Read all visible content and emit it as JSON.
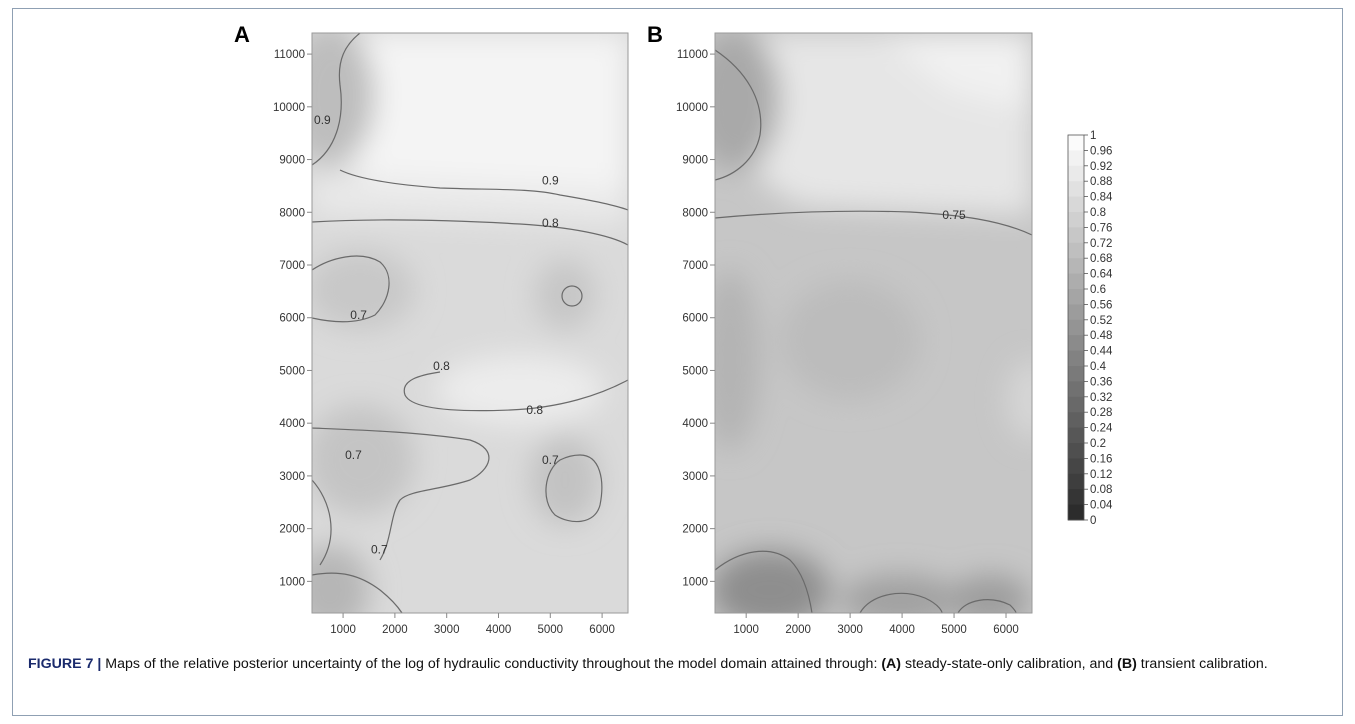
{
  "chart_data": [
    {
      "panel": "A",
      "type": "heatmap",
      "subtype": "filled-contour",
      "x_ticks": [
        1000,
        2000,
        3000,
        4000,
        5000,
        6000
      ],
      "y_ticks": [
        1000,
        2000,
        3000,
        4000,
        5000,
        6000,
        7000,
        8000,
        9000,
        10000,
        11000
      ],
      "xlim": [
        400,
        6500
      ],
      "ylim": [
        400,
        11400
      ],
      "contour_labels": [
        {
          "text": "0.9",
          "x": 600,
          "y": 9750
        },
        {
          "text": "0.9",
          "x": 5000,
          "y": 8600
        },
        {
          "text": "0.8",
          "x": 5000,
          "y": 7800
        },
        {
          "text": "0.7",
          "x": 1300,
          "y": 6050
        },
        {
          "text": "0.8",
          "x": 2900,
          "y": 5080
        },
        {
          "text": "0.8",
          "x": 4700,
          "y": 4250
        },
        {
          "text": "0.7",
          "x": 1200,
          "y": 3400
        },
        {
          "text": "0.7",
          "x": 5000,
          "y": 3300
        },
        {
          "text": "0.7",
          "x": 1700,
          "y": 1600
        }
      ],
      "value_range": [
        0.55,
        1.0
      ]
    },
    {
      "panel": "B",
      "type": "heatmap",
      "subtype": "filled-contour",
      "x_ticks": [
        1000,
        2000,
        3000,
        4000,
        5000,
        6000
      ],
      "y_ticks": [
        1000,
        2000,
        3000,
        4000,
        5000,
        6000,
        7000,
        8000,
        9000,
        10000,
        11000
      ],
      "xlim": [
        400,
        6500
      ],
      "ylim": [
        400,
        11400
      ],
      "contour_labels": [
        {
          "text": "0.75",
          "x": 5000,
          "y": 7950
        }
      ],
      "value_range": [
        0.5,
        1.0
      ]
    }
  ],
  "panel_labels": [
    "A",
    "B"
  ],
  "colorbar": {
    "labels": [
      "1",
      "0.96",
      "0.92",
      "0.88",
      "0.84",
      "0.8",
      "0.76",
      "0.72",
      "0.68",
      "0.64",
      "0.6",
      "0.56",
      "0.52",
      "0.48",
      "0.44",
      "0.4",
      "0.36",
      "0.32",
      "0.28",
      "0.24",
      "0.2",
      "0.16",
      "0.12",
      "0.08",
      "0.04",
      "0"
    ]
  },
  "caption": {
    "figure_label": "FIGURE 7 |",
    "text_before_a": " Maps of the relative posterior uncertainty of the log of hydraulic conductivity throughout the model domain attained through: ",
    "ref_a": "(A)",
    "text_a": " steady-state-only calibration, and ",
    "ref_b": "(B)",
    "text_b": " transient calibration."
  },
  "colors": {
    "frame_border": "#8fa0b3",
    "figure_label": "#1a2a6c",
    "contour_line": "#6a6a6a"
  }
}
